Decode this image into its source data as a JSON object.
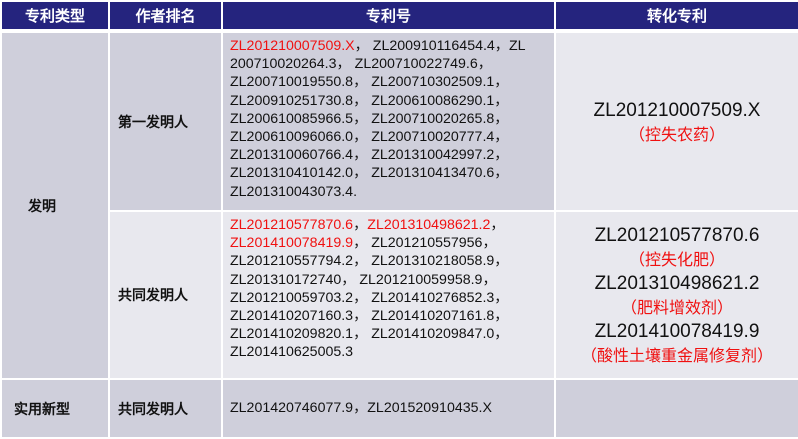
{
  "headers": [
    "专利类型",
    "作者排名",
    "专利号",
    "转化专利"
  ],
  "rows": {
    "invention": {
      "type": "发明",
      "first": {
        "rank": "第一发明人",
        "red_patents": [
          "ZL201210007509.X"
        ],
        "patents_text": "，  ZL200910116454.4，ZL 200710020264.3， ZL200710022749.6，ZL200710019550.8， ZL200710302509.1，ZL200910251730.8， ZL200610086290.1，ZL200610085966.5， ZL200710020265.8，ZL200610096066.0， ZL200710020777.4，ZL201310060766.4， ZL201310042997.2，ZL201310410142.0， ZL201310413470.6，ZL201310043073.4.",
        "converted": [
          {
            "number": "ZL201210007509.X",
            "note": "（控失农药）"
          }
        ]
      },
      "co": {
        "rank": "共同发明人",
        "red_patents": [
          "ZL201210577870.6",
          "ZL201310498621.2",
          "ZL201410078419.9"
        ],
        "patents_text": "， ZL201210557956，ZL201210557794.2， ZL201310218058.9，ZL201310172740， ZL201210059958.9，ZL201210059703.2， ZL201410276852.3，ZL201410207160.3， ZL201410207161.8，ZL201410209820.1， ZL201410209847.0，ZL201410625005.3",
        "converted": [
          {
            "number": "ZL201210577870.6",
            "note": "（控失化肥）"
          },
          {
            "number": "ZL201310498621.2",
            "note": "（肥料增效剂）"
          },
          {
            "number": "ZL201410078419.9",
            "note": "（酸性土壤重金属修复剂）"
          }
        ]
      }
    },
    "utility": {
      "type": "实用新型",
      "rank": "共同发明人",
      "patents_text": "ZL201420746077.9，ZL201520910435.X"
    }
  }
}
